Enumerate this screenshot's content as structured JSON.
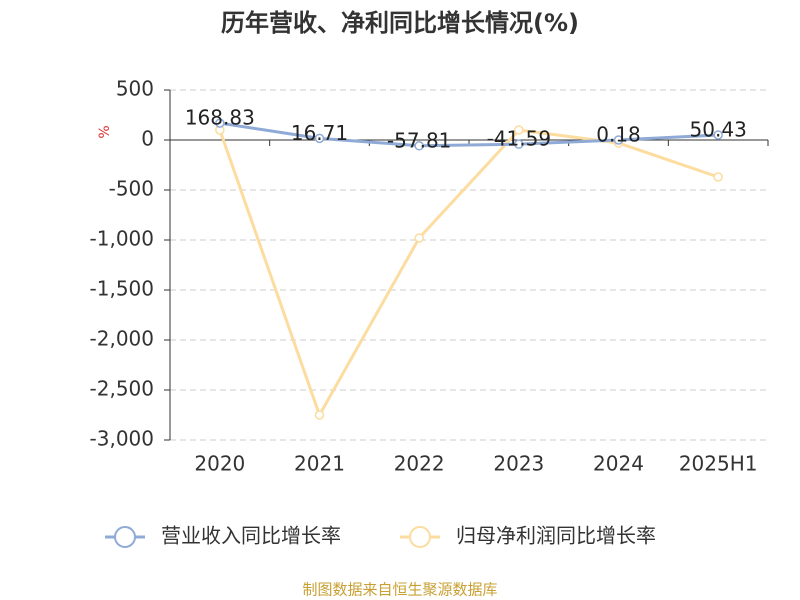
{
  "chart_data": {
    "type": "line",
    "title": "历年营收、净利同比增长情况(%)",
    "y_label": "%",
    "categories": [
      "2020",
      "2021",
      "2022",
      "2023",
      "2024",
      "2025H1"
    ],
    "series": [
      {
        "name": "营业收入同比增长率",
        "color": "#8faad6",
        "values": [
          168.83,
          16.71,
          -57.81,
          -41.59,
          0.18,
          50.43
        ]
      },
      {
        "name": "归母净利润同比增长率",
        "color": "#fcdc9f",
        "values": [
          100,
          -2750,
          -980,
          100,
          -30,
          -370
        ]
      }
    ],
    "ylim": [
      -3000,
      500
    ],
    "yticks": [
      500,
      0,
      -500,
      {
        "value": -1000,
        "label": "-1,000"
      },
      {
        "value": -1500,
        "label": "-1,500"
      },
      {
        "value": -2000,
        "label": "-2,000"
      },
      {
        "value": -2500,
        "label": "-2,500"
      },
      {
        "value": -3000,
        "label": "-3,000"
      }
    ],
    "grid": true,
    "legend": "bottom",
    "source": "制图数据来自恒生聚源数据库"
  }
}
